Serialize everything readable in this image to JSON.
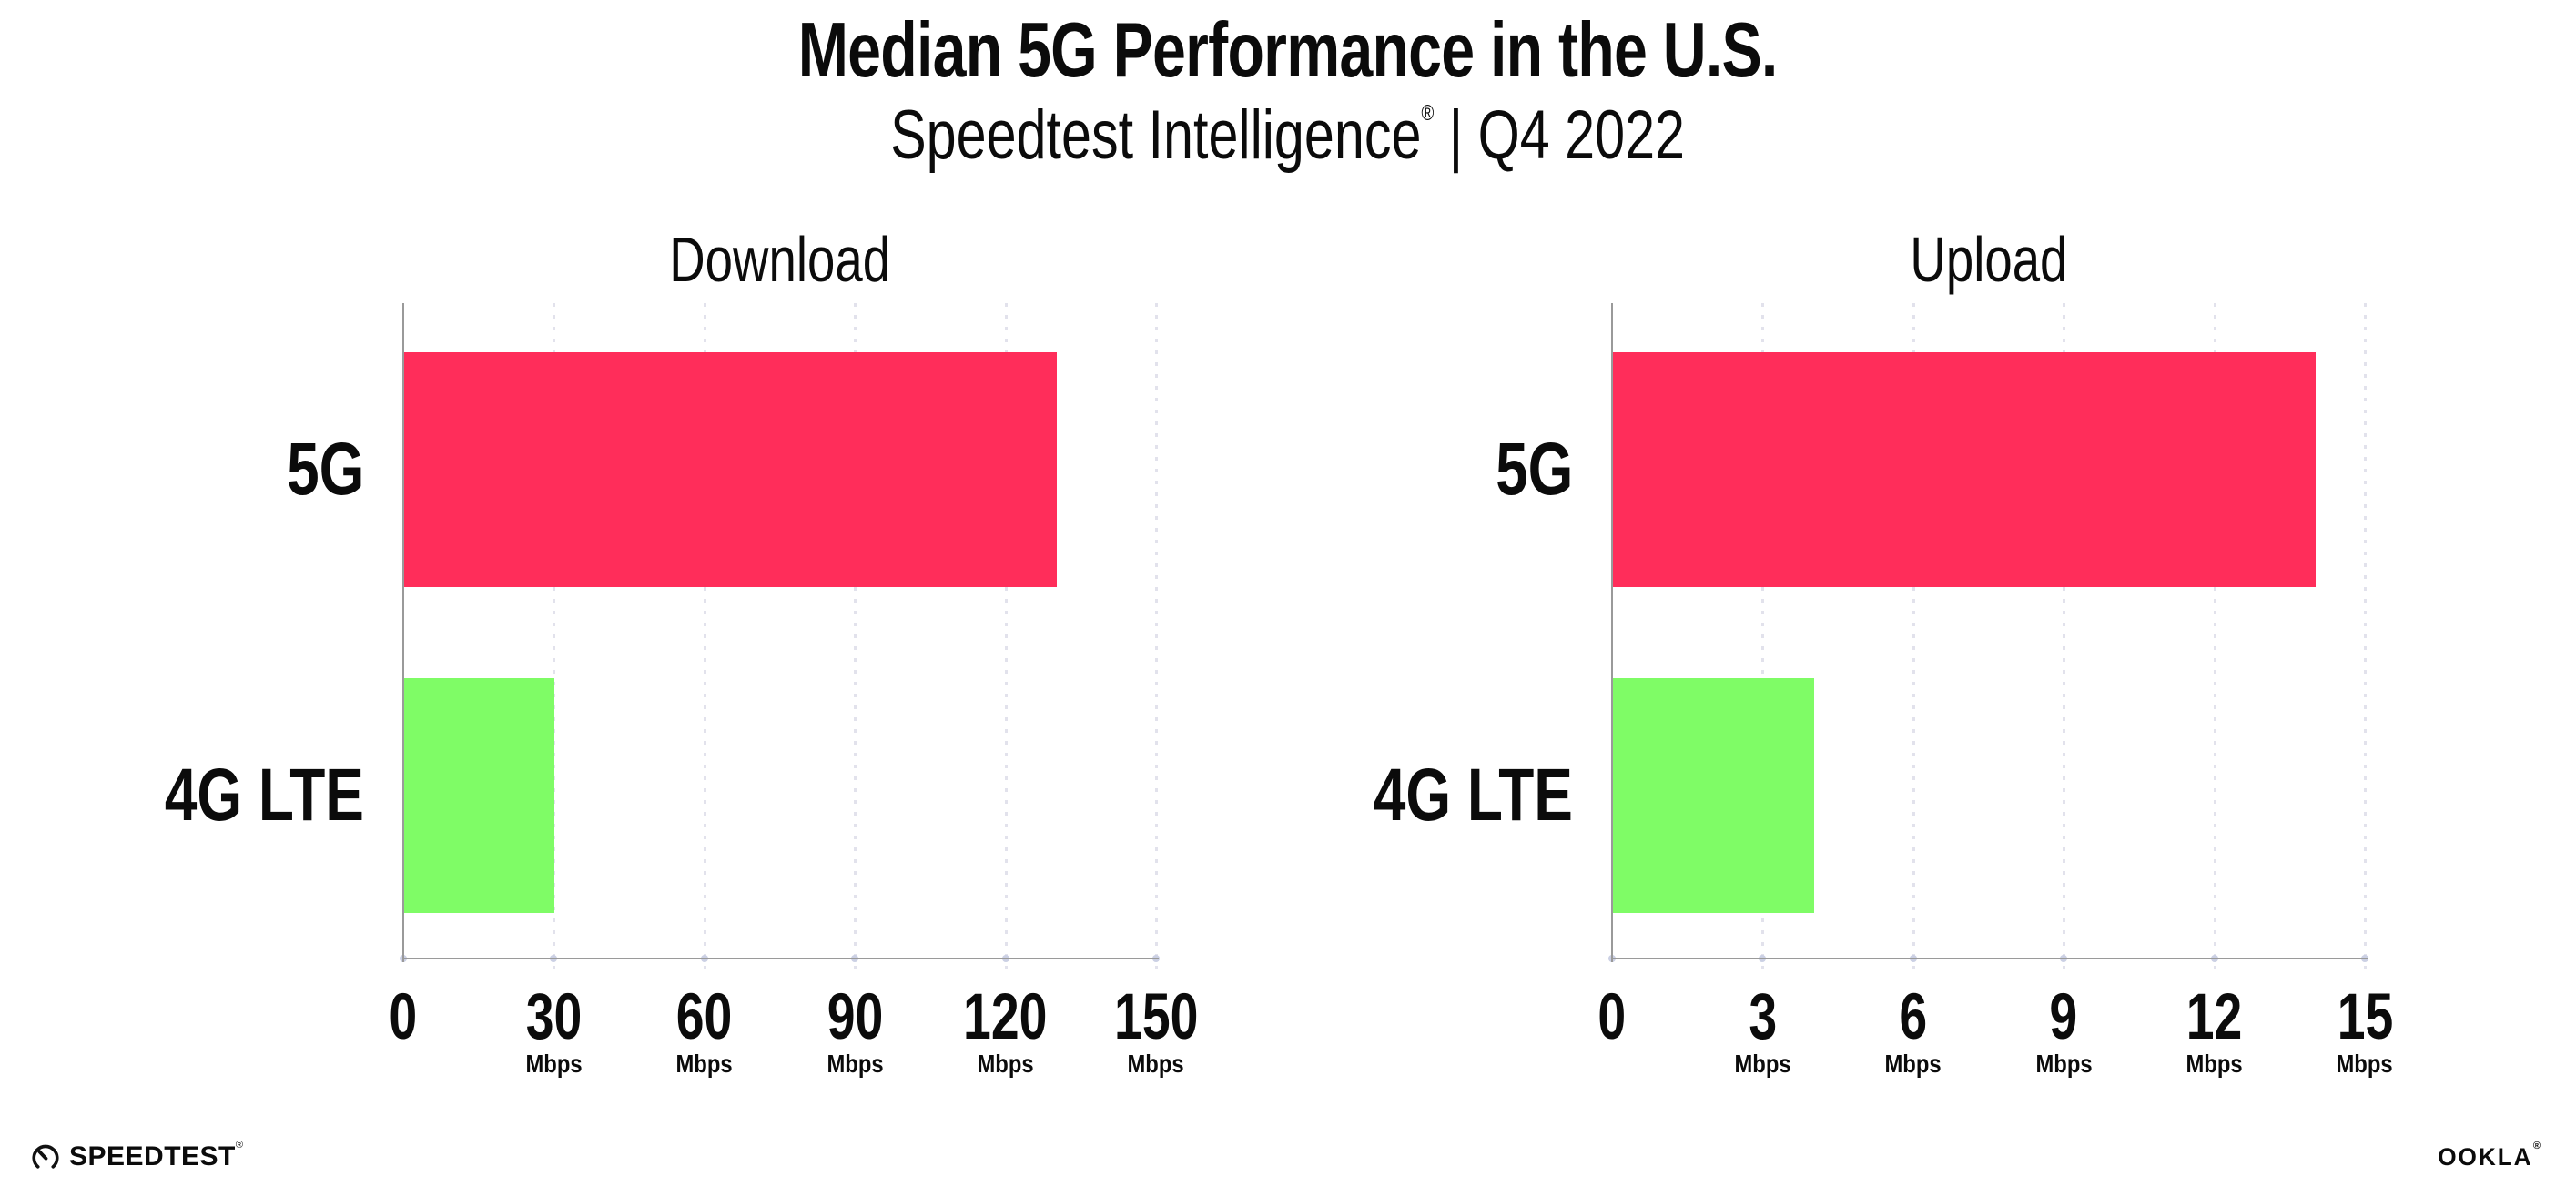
{
  "header": {
    "title": "Median 5G Performance in the U.S.",
    "subtitle_brand": "Speedtest Intelligence",
    "subtitle_reg": "®",
    "subtitle_rest": " | Q4 2022"
  },
  "chart_data": [
    {
      "type": "bar",
      "orientation": "horizontal",
      "title": "Download",
      "categories": [
        "5G",
        "4G LTE"
      ],
      "values": [
        130,
        30
      ],
      "unit": "Mbps",
      "xlim": [
        0,
        150
      ],
      "xticks": [
        0,
        30,
        60,
        90,
        120,
        150
      ],
      "bar_colors": [
        "#FF2D5A",
        "#7FFC66"
      ],
      "grid": "dotted-vertical-on",
      "legend": "none"
    },
    {
      "type": "bar",
      "orientation": "horizontal",
      "title": "Upload",
      "categories": [
        "5G",
        "4G LTE"
      ],
      "values": [
        14,
        4
      ],
      "unit": "Mbps",
      "xlim": [
        0,
        15
      ],
      "xticks": [
        0,
        3,
        6,
        9,
        12,
        15
      ],
      "bar_colors": [
        "#FF2D5A",
        "#7FFC66"
      ],
      "grid": "dotted-vertical-on",
      "legend": "none"
    }
  ],
  "footer": {
    "speedtest_label": "SPEEDTEST",
    "speedtest_tm": "®",
    "ookla_label": "OOKLA",
    "ookla_tm": "®"
  },
  "colors": {
    "bar_5g": "#FF2D5A",
    "bar_4g_lte": "#7FFC66",
    "axis": "#9A9A9A",
    "gridline": "#E2E2EC",
    "text": "#0B0B0B",
    "background": "#FFFFFF"
  }
}
